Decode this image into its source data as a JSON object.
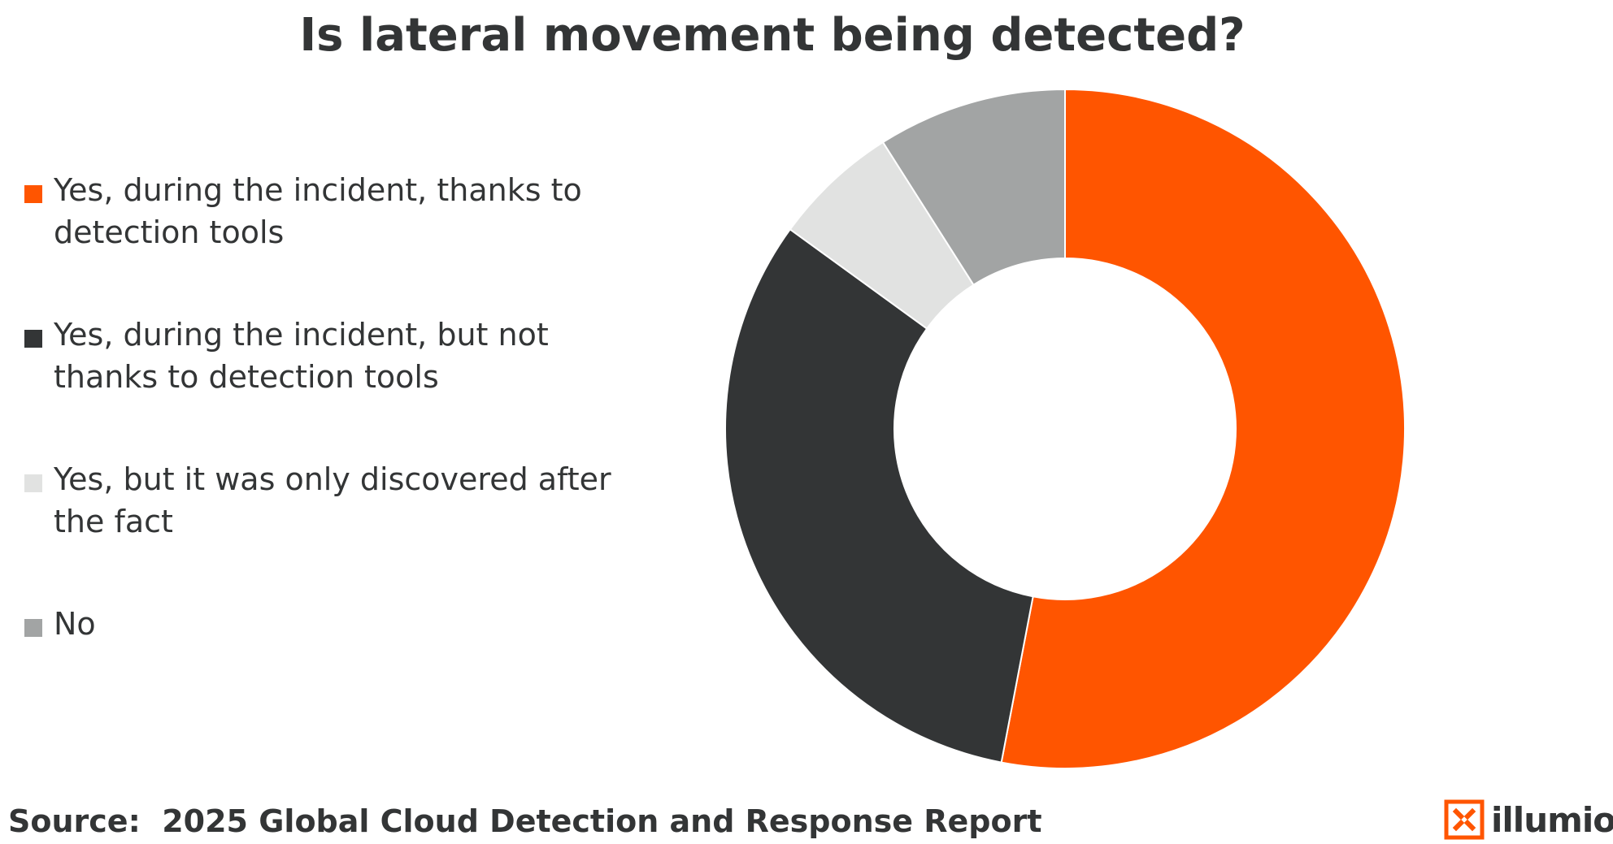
{
  "chart_data": {
    "type": "pie",
    "title": "Is lateral movement being detected?",
    "donut": true,
    "legend_position": "left",
    "categories": [
      "Yes, during the incident, thanks to detection tools",
      "Yes, during the incident, but not thanks to detection tools",
      "Yes, but it was only discovered after the fact",
      "No"
    ],
    "values": [
      53,
      32,
      6,
      9
    ],
    "colors": [
      "#ff5500",
      "#333536",
      "#e1e2e1",
      "#a2a4a4"
    ]
  },
  "source": {
    "label": "Source:",
    "text": "2025 Global Cloud Detection and Response Report"
  },
  "brand": {
    "name": "illumio",
    "accent": "#ff5500",
    "icon": "illumio-logo-icon"
  }
}
